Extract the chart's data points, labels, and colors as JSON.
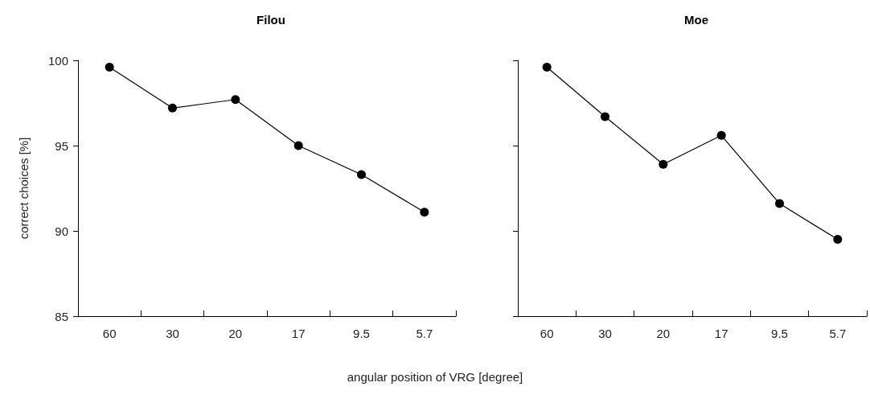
{
  "chart_data": [
    {
      "type": "line",
      "title": "Filou",
      "ylabel": "correct choices [%]",
      "xlabel": "angular position of VRG [degree]",
      "categories": [
        "60",
        "30",
        "20",
        "17",
        "9.5",
        "5.7"
      ],
      "series": [
        {
          "color": "#000000",
          "values": [
            99.6,
            97.2,
            97.7,
            95.0,
            93.3,
            91.1
          ]
        }
      ],
      "ylim": [
        85,
        100
      ],
      "yticks": [
        85,
        90,
        95,
        100
      ],
      "grid": false,
      "marker": "circle",
      "line_style": "solid"
    },
    {
      "type": "line",
      "title": "Moe",
      "categories": [
        "60",
        "30",
        "20",
        "17",
        "9.5",
        "5.7"
      ],
      "series": [
        {
          "color": "#000000",
          "values": [
            99.6,
            96.7,
            93.9,
            95.6,
            91.6,
            89.5
          ]
        }
      ],
      "ylim": [
        85,
        100
      ],
      "yticks": [
        85,
        90,
        95,
        100
      ],
      "grid": false,
      "marker": "circle",
      "line_style": "solid",
      "tick_labels": "x"
    }
  ]
}
